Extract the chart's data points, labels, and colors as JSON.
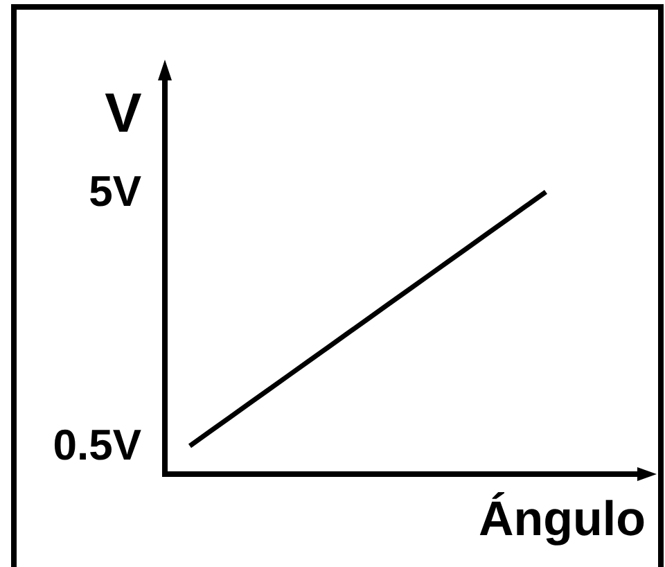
{
  "chart_data": {
    "type": "line",
    "xlabel": "Ángulo",
    "ylabel": "V",
    "categories": [
      null,
      null,
      null,
      null,
      null,
      null,
      null,
      null,
      null,
      null,
      null,
      null,
      null,
      null,
      null,
      null,
      null,
      null,
      null
    ],
    "series": [
      {
        "color": "#000000",
        "values": [
          0.5,
          0.75,
          1,
          1.25,
          1.5,
          1.75,
          2,
          2.25,
          2.5,
          2.75,
          3,
          3.25,
          3.5,
          3.75,
          4,
          4.25,
          4.5,
          4.75,
          5
        ]
      }
    ],
    "ylim": [
      0,
      7
    ],
    "yticks": [
      {
        "value": 0.5,
        "label": "0.5V"
      },
      {
        "value": 5,
        "label": "5V"
      }
    ],
    "tick_labels": "y"
  }
}
